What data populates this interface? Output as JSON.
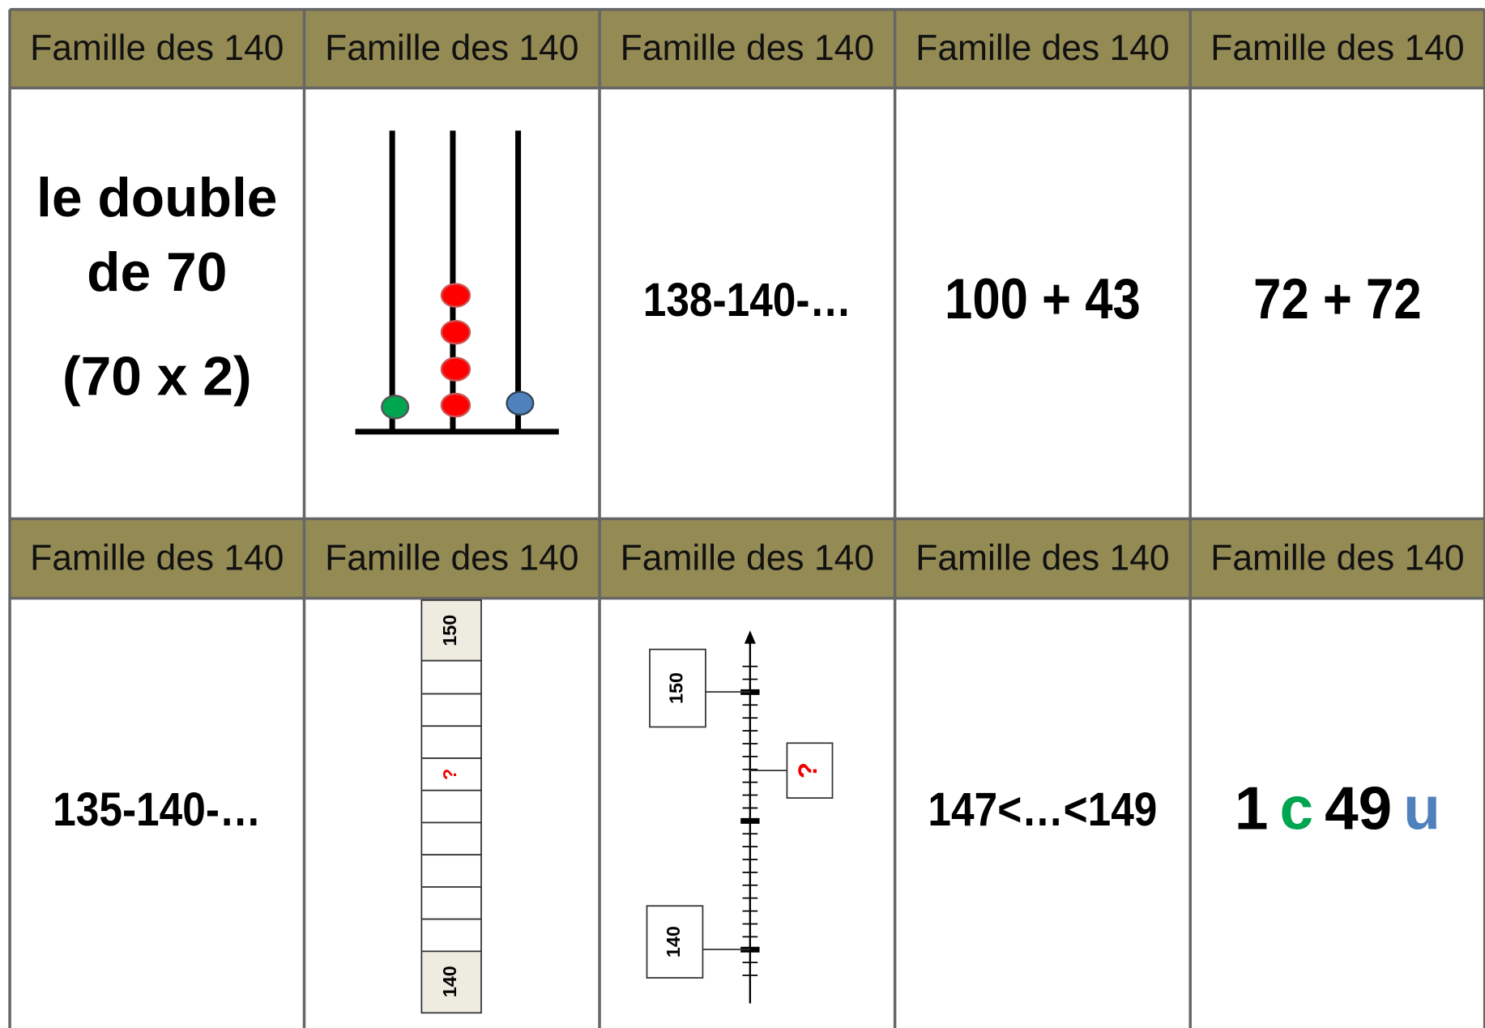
{
  "cards": [
    {
      "header": "Famille des 140",
      "lines": [
        "le double",
        "de 70",
        "(70 x 2)"
      ]
    },
    {
      "header": "Famille des 140"
    },
    {
      "header": "Famille des 140",
      "text": "138-140-…"
    },
    {
      "header": "Famille des 140",
      "text": "100 + 43"
    },
    {
      "header": "Famille des 140",
      "text": "72 + 72"
    },
    {
      "header": "Famille des 140",
      "text": "135-140-…"
    },
    {
      "header": "Famille des 140",
      "labels": [
        "150",
        "?",
        "140"
      ]
    },
    {
      "header": "Famille des 140",
      "labels": [
        "150",
        "?",
        "140"
      ]
    },
    {
      "header": "Famille des 140",
      "text": "147<…<149"
    },
    {
      "header": "Famille des 140",
      "parts": [
        "1",
        "c",
        "49",
        "u"
      ]
    }
  ]
}
